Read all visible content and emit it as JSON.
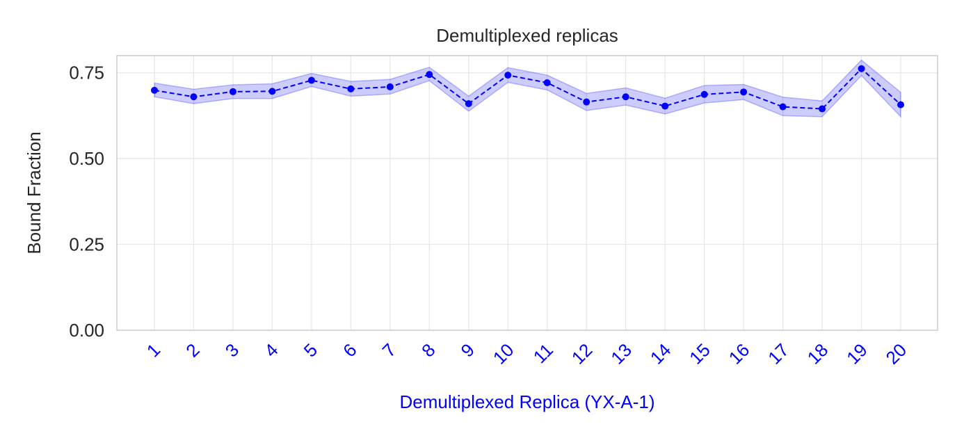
{
  "chart_data": {
    "type": "line",
    "title": "Demultiplexed replicas",
    "xlabel": "Demultiplexed Replica (YX-A-1)",
    "ylabel": "Bound Fraction",
    "categories": [
      "1",
      "2",
      "3",
      "4",
      "5",
      "6",
      "7",
      "8",
      "9",
      "10",
      "11",
      "12",
      "13",
      "14",
      "15",
      "16",
      "17",
      "18",
      "19",
      "20"
    ],
    "series": [
      {
        "values": [
          0.699,
          0.68,
          0.695,
          0.696,
          0.728,
          0.703,
          0.709,
          0.745,
          0.66,
          0.743,
          0.721,
          0.665,
          0.68,
          0.653,
          0.687,
          0.694,
          0.651,
          0.645,
          0.762,
          0.657
        ],
        "lower": [
          0.68,
          0.66,
          0.675,
          0.675,
          0.71,
          0.682,
          0.688,
          0.727,
          0.638,
          0.722,
          0.7,
          0.64,
          0.656,
          0.63,
          0.662,
          0.672,
          0.625,
          0.622,
          0.742,
          0.622
        ],
        "upper": [
          0.72,
          0.702,
          0.715,
          0.718,
          0.748,
          0.725,
          0.731,
          0.766,
          0.682,
          0.765,
          0.743,
          0.69,
          0.706,
          0.676,
          0.713,
          0.716,
          0.679,
          0.668,
          0.787,
          0.693
        ],
        "color": "#0000ff",
        "band_color": "#0000ff",
        "line_style": "dashed",
        "marker": "circle"
      }
    ],
    "yticks": [
      0.0,
      0.25,
      0.5,
      0.75
    ],
    "ytick_labels": [
      "0.00",
      "0.25",
      "0.50",
      "0.75"
    ],
    "ylim": [
      0.0,
      0.8
    ],
    "grid": true,
    "xtick_color": "#0000ff",
    "xtick_rotation": 45,
    "xlabel_color": "#0000ff"
  }
}
